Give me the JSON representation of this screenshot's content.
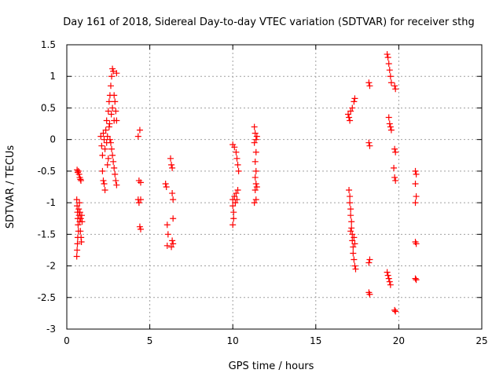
{
  "chart_data": {
    "type": "scatter",
    "title": "Day 161 of 2018, Sidereal Day-to-day VTEC variation (SDTVAR) for receiver sthg",
    "xlabel": "GPS time / hours",
    "ylabel": "SDTVAR / TECUs",
    "xlim": [
      0,
      25
    ],
    "ylim": [
      -3,
      1.5
    ],
    "xticks": [
      0,
      5,
      10,
      15,
      20,
      25
    ],
    "xtick_labels": [
      "0",
      "5",
      "10",
      "15",
      "20",
      "25"
    ],
    "yticks": [
      -3,
      -2.5,
      -2,
      -1.5,
      -1,
      -0.5,
      0,
      0.5,
      1,
      1.5
    ],
    "ytick_labels": [
      "-3",
      "-2.5",
      "-2",
      "-1.5",
      "-1",
      "-0.5",
      "0",
      "0.5",
      "1",
      "1.5"
    ],
    "grid": true,
    "marker": "+",
    "marker_color": "#ff0000",
    "series": [
      {
        "name": "SDTVAR",
        "points": [
          [
            0.62,
            -0.48
          ],
          [
            0.66,
            -0.52
          ],
          [
            0.7,
            -0.5
          ],
          [
            0.74,
            -0.55
          ],
          [
            0.78,
            -0.6
          ],
          [
            0.82,
            -0.63
          ],
          [
            0.85,
            -0.65
          ],
          [
            0.6,
            -0.95
          ],
          [
            0.62,
            -1.05
          ],
          [
            0.64,
            -1.15
          ],
          [
            0.66,
            -1.25
          ],
          [
            0.68,
            -1.35
          ],
          [
            0.7,
            -1.45
          ],
          [
            0.66,
            -1.55
          ],
          [
            0.64,
            -1.65
          ],
          [
            0.62,
            -1.75
          ],
          [
            0.6,
            -1.85
          ],
          [
            0.72,
            -1.1
          ],
          [
            0.74,
            -1.2
          ],
          [
            0.78,
            -1.3
          ],
          [
            0.82,
            -1.45
          ],
          [
            0.86,
            -1.55
          ],
          [
            0.88,
            -1.62
          ],
          [
            0.9,
            -1.2
          ],
          [
            0.92,
            -1.3
          ],
          [
            0.76,
            -1.0
          ],
          [
            0.8,
            -1.15
          ],
          [
            0.84,
            -1.25
          ],
          [
            2.05,
            0.05
          ],
          [
            2.1,
            -0.1
          ],
          [
            2.15,
            -0.25
          ],
          [
            2.15,
            -0.5
          ],
          [
            2.2,
            -0.65
          ],
          [
            2.25,
            -0.7
          ],
          [
            2.3,
            -0.8
          ],
          [
            2.2,
            0.1
          ],
          [
            2.25,
            0.0
          ],
          [
            2.3,
            -0.15
          ],
          [
            2.35,
            0.15
          ],
          [
            2.4,
            0.3
          ],
          [
            2.45,
            0.05
          ],
          [
            2.45,
            -0.4
          ],
          [
            2.5,
            0.45
          ],
          [
            2.5,
            -0.3
          ],
          [
            2.55,
            0.6
          ],
          [
            2.55,
            0.2
          ],
          [
            2.6,
            0.7
          ],
          [
            2.6,
            0.0
          ],
          [
            2.65,
            0.85
          ],
          [
            2.65,
            -0.05
          ],
          [
            2.7,
            1.0
          ],
          [
            2.7,
            -0.15
          ],
          [
            2.75,
            1.12
          ],
          [
            2.75,
            -0.25
          ],
          [
            2.8,
            1.08
          ],
          [
            2.8,
            -0.35
          ],
          [
            2.85,
            0.7
          ],
          [
            2.85,
            -0.45
          ],
          [
            2.9,
            0.6
          ],
          [
            2.9,
            -0.55
          ],
          [
            2.95,
            0.45
          ],
          [
            2.95,
            -0.65
          ],
          [
            3.0,
            0.3
          ],
          [
            3.0,
            -0.72
          ],
          [
            3.0,
            1.05
          ],
          [
            2.85,
            0.3
          ],
          [
            2.75,
            0.5
          ],
          [
            2.68,
            0.4
          ],
          [
            2.58,
            0.25
          ],
          [
            2.4,
            -0.05
          ],
          [
            4.3,
            0.05
          ],
          [
            4.4,
            0.15
          ],
          [
            4.35,
            -0.65
          ],
          [
            4.45,
            -0.68
          ],
          [
            4.3,
            -0.95
          ],
          [
            4.35,
            -1.0
          ],
          [
            4.45,
            -0.95
          ],
          [
            4.4,
            -1.38
          ],
          [
            4.45,
            -1.42
          ],
          [
            5.95,
            -0.7
          ],
          [
            6.0,
            -0.75
          ],
          [
            6.05,
            -1.35
          ],
          [
            6.1,
            -1.5
          ],
          [
            6.05,
            -1.68
          ],
          [
            6.25,
            -0.3
          ],
          [
            6.3,
            -0.4
          ],
          [
            6.35,
            -0.45
          ],
          [
            6.35,
            -0.85
          ],
          [
            6.4,
            -0.95
          ],
          [
            6.4,
            -1.25
          ],
          [
            6.35,
            -1.6
          ],
          [
            6.4,
            -1.65
          ],
          [
            6.3,
            -1.7
          ],
          [
            10.0,
            -0.08
          ],
          [
            10.1,
            -0.12
          ],
          [
            10.2,
            -0.2
          ],
          [
            10.25,
            -0.3
          ],
          [
            10.3,
            -0.4
          ],
          [
            10.35,
            -0.5
          ],
          [
            10.0,
            -0.95
          ],
          [
            10.0,
            -1.05
          ],
          [
            10.05,
            -1.15
          ],
          [
            10.05,
            -1.25
          ],
          [
            10.0,
            -1.35
          ],
          [
            10.1,
            -0.9
          ],
          [
            10.15,
            -1.0
          ],
          [
            10.2,
            -0.85
          ],
          [
            10.25,
            -0.95
          ],
          [
            10.3,
            -0.8
          ],
          [
            11.3,
            0.2
          ],
          [
            11.35,
            0.1
          ],
          [
            11.4,
            0.0
          ],
          [
            11.3,
            -0.05
          ],
          [
            11.4,
            -0.2
          ],
          [
            11.35,
            -0.35
          ],
          [
            11.4,
            -0.5
          ],
          [
            11.35,
            -0.6
          ],
          [
            11.4,
            -0.7
          ],
          [
            11.35,
            -0.8
          ],
          [
            11.4,
            -0.95
          ],
          [
            11.3,
            -1.0
          ],
          [
            11.45,
            -0.75
          ],
          [
            11.45,
            0.05
          ],
          [
            16.95,
            0.4
          ],
          [
            17.0,
            0.35
          ],
          [
            17.05,
            0.3
          ],
          [
            17.1,
            0.45
          ],
          [
            17.2,
            0.5
          ],
          [
            17.3,
            0.6
          ],
          [
            17.35,
            0.65
          ],
          [
            17.0,
            -0.8
          ],
          [
            17.05,
            -0.9
          ],
          [
            17.05,
            -1.0
          ],
          [
            17.1,
            -1.1
          ],
          [
            17.1,
            -1.2
          ],
          [
            17.15,
            -1.3
          ],
          [
            17.15,
            -1.4
          ],
          [
            17.2,
            -1.5
          ],
          [
            17.2,
            -1.6
          ],
          [
            17.25,
            -1.7
          ],
          [
            17.25,
            -1.8
          ],
          [
            17.3,
            -1.9
          ],
          [
            17.35,
            -2.0
          ],
          [
            17.4,
            -2.05
          ],
          [
            17.3,
            -1.55
          ],
          [
            17.35,
            -1.65
          ],
          [
            17.1,
            -1.45
          ],
          [
            18.2,
            0.9
          ],
          [
            18.25,
            0.85
          ],
          [
            18.2,
            -0.05
          ],
          [
            18.25,
            -0.1
          ],
          [
            18.25,
            -1.9
          ],
          [
            18.2,
            -1.95
          ],
          [
            18.2,
            -2.42
          ],
          [
            18.25,
            -2.45
          ],
          [
            19.3,
            1.35
          ],
          [
            19.35,
            1.3
          ],
          [
            19.4,
            1.2
          ],
          [
            19.45,
            1.1
          ],
          [
            19.5,
            1.0
          ],
          [
            19.55,
            0.9
          ],
          [
            19.4,
            0.35
          ],
          [
            19.45,
            0.25
          ],
          [
            19.5,
            0.2
          ],
          [
            19.55,
            0.15
          ],
          [
            19.3,
            -2.1
          ],
          [
            19.35,
            -2.15
          ],
          [
            19.4,
            -2.2
          ],
          [
            19.45,
            -2.25
          ],
          [
            19.5,
            -2.3
          ],
          [
            19.75,
            0.85
          ],
          [
            19.8,
            0.8
          ],
          [
            19.75,
            -0.15
          ],
          [
            19.8,
            -0.2
          ],
          [
            19.7,
            -0.45
          ],
          [
            19.75,
            -0.6
          ],
          [
            19.8,
            -0.65
          ],
          [
            19.75,
            -2.7
          ],
          [
            19.8,
            -2.72
          ],
          [
            21.0,
            -0.5
          ],
          [
            21.05,
            -0.55
          ],
          [
            21.0,
            -0.7
          ],
          [
            21.05,
            -0.9
          ],
          [
            21.0,
            -1.0
          ],
          [
            21.0,
            -1.62
          ],
          [
            21.05,
            -1.65
          ],
          [
            21.0,
            -2.2
          ],
          [
            21.05,
            -2.22
          ]
        ]
      }
    ]
  }
}
